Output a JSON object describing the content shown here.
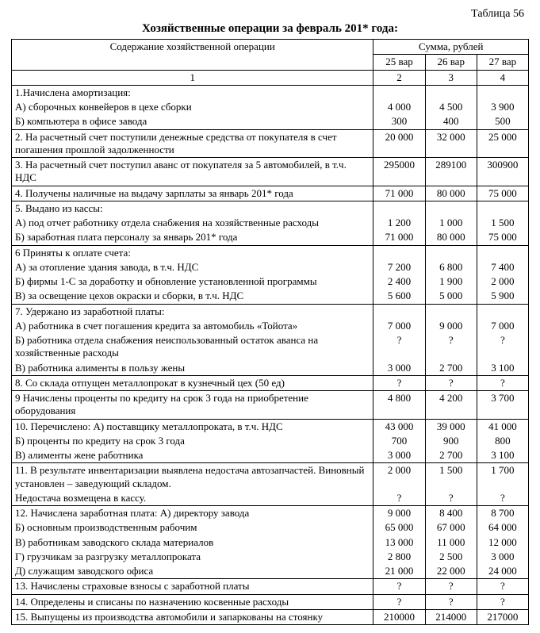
{
  "tableLabel": "Таблица 56",
  "title": "Хозяйственные операции за февраль 201* года:",
  "header": {
    "desc": "Содержание хозяйственной операции",
    "sum": "Сумма, рублей",
    "v1": "25 вар",
    "v2": "26 вар",
    "v3": "27 вар",
    "c1": "1",
    "c2": "2",
    "c3": "3",
    "c4": "4"
  },
  "rows": [
    {
      "group": "start",
      "desc": "1.Начислена амортизация:",
      "v1": "",
      "v2": "",
      "v3": ""
    },
    {
      "group": "mid",
      "desc": "А) сборочных конвейеров в цехе сборки",
      "v1": "4 000",
      "v2": "4 500",
      "v3": "3 900"
    },
    {
      "group": "end",
      "desc": "Б) компьютера в офисе завода",
      "v1": "300",
      "v2": "400",
      "v3": "500"
    },
    {
      "group": "single",
      "justify": true,
      "desc": "2. На расчетный счет поступили денежные средства от покупателя в счет погашения прошлой задолженности",
      "v1": "20 000",
      "v2": "32 000",
      "v3": "25 000"
    },
    {
      "group": "single",
      "desc": "3. На расчетный счет поступил аванс от покупателя за 5 автомобилей, в т.ч. НДС",
      "v1": "295000",
      "v2": "289100",
      "v3": "300900"
    },
    {
      "group": "single",
      "desc": "4. Получены наличные на выдачу зарплаты за январь 201* года",
      "v1": "71 000",
      "v2": "80 000",
      "v3": "75 000"
    },
    {
      "group": "start",
      "desc": "5. Выдано из кассы:",
      "v1": "",
      "v2": "",
      "v3": ""
    },
    {
      "group": "mid",
      "desc": "А) под отчет работнику отдела снабжения  на хозяйственные  расходы",
      "v1": "1 200",
      "v2": "1 000",
      "v3": "1 500"
    },
    {
      "group": "end",
      "desc": "Б) заработная плата персоналу за январь 201* года",
      "v1": "71 000",
      "v2": "80 000",
      "v3": "75 000"
    },
    {
      "group": "start",
      "desc": "6 Приняты к оплате счета:",
      "v1": "",
      "v2": "",
      "v3": ""
    },
    {
      "group": "mid",
      "desc": "А) за отопление здания завода, в т.ч. НДС",
      "v1": "7 200",
      "v2": "6 800",
      "v3": "7 400"
    },
    {
      "group": "mid",
      "desc": "Б) фирмы 1-С за доработку и обновление установленной программы",
      "v1": "2 400",
      "v2": "1 900",
      "v3": "2 000"
    },
    {
      "group": "end",
      "desc": "В) за освещение цехов окраски и сборки, в т.ч. НДС",
      "v1": "5 600",
      "v2": "5 000",
      "v3": "5 900"
    },
    {
      "group": "start",
      "desc": "7. Удержано из заработной платы:",
      "v1": "",
      "v2": "",
      "v3": ""
    },
    {
      "group": "mid",
      "desc": "А) работника в счет погашения кредита за автомобиль «Тойота»",
      "v1": "7 000",
      "v2": "9 000",
      "v3": "7 000"
    },
    {
      "group": "mid",
      "desc": "Б) работника отдела снабжения неиспользованный остаток аванса на хозяйственные расходы",
      "v1": "?",
      "v2": "?",
      "v3": "?"
    },
    {
      "group": "end",
      "desc": "В) работника алименты в пользу жены",
      "v1": "3 000",
      "v2": "2 700",
      "v3": "3 100"
    },
    {
      "group": "single",
      "desc": "8. Со склада отпущен металлопрокат в кузнечный цех (50 ед)",
      "v1": "?",
      "v2": "?",
      "v3": "?"
    },
    {
      "group": "single",
      "desc": "9 Начислены проценты по кредиту на срок 3 года на приобретение оборудования",
      "v1": "4 800",
      "v2": "4 200",
      "v3": "3 700"
    },
    {
      "group": "start",
      "desc": "10. Перечислено: А) поставщику металлопроката, в т.ч. НДС",
      "v1": "43 000",
      "v2": "39 000",
      "v3": "41 000"
    },
    {
      "group": "mid",
      "desc": "Б) проценты по кредиту на срок 3 года",
      "v1": "700",
      "v2": "900",
      "v3": "800"
    },
    {
      "group": "end",
      "desc": "В) алименты жене работника",
      "v1": "3 000",
      "v2": "2 700",
      "v3": "3 100"
    },
    {
      "group": "start",
      "desc": "11. В результате инвентаризации выявлена недостача автозапчастей. Виновный установлен – заведующий складом.",
      "v1": "2 000",
      "v2": "1 500",
      "v3": "1 700"
    },
    {
      "group": "end",
      "desc": "Недостача возмещена в кассу.",
      "v1": "?",
      "v2": "?",
      "v3": "?"
    },
    {
      "group": "start",
      "desc": "12. Начислена заработная плата: А) директору завода",
      "v1": "9 000",
      "v2": "8 400",
      "v3": "8 700"
    },
    {
      "group": "mid",
      "desc": "Б) основным производственным рабочим",
      "v1": "65 000",
      "v2": "67 000",
      "v3": "64 000"
    },
    {
      "group": "mid",
      "desc": "В) работникам заводского склада материалов",
      "v1": "13 000",
      "v2": "11 000",
      "v3": "12 000"
    },
    {
      "group": "mid",
      "desc": "Г) грузчикам за разгрузку металлопроката",
      "v1": "2 800",
      "v2": "2 500",
      "v3": "3 000"
    },
    {
      "group": "end",
      "desc": "Д) служащим заводского офиса",
      "v1": "21 000",
      "v2": "22 000",
      "v3": "24 000"
    },
    {
      "group": "single",
      "desc": "13. Начислены страховые взносы с заработной платы",
      "v1": "?",
      "v2": "?",
      "v3": "?"
    },
    {
      "group": "single",
      "desc": "14. Определены и списаны по назначению косвенные расходы",
      "v1": "?",
      "v2": "?",
      "v3": "?"
    },
    {
      "group": "single",
      "desc": "15. Выпущены из производства автомобили и запаркованы на стоянку",
      "v1": "210000",
      "v2": "214000",
      "v3": "217000"
    }
  ]
}
